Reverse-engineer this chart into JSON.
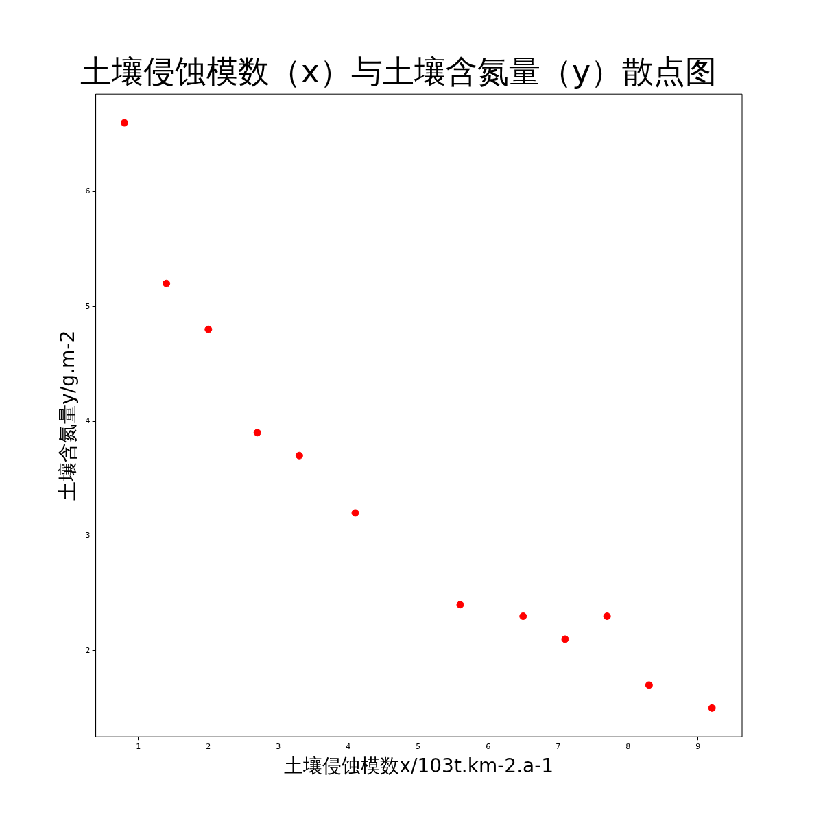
{
  "chart_data": {
    "type": "scatter",
    "title": "土壤侵蚀模数（x）与土壤含氮量（y）散点图",
    "xlabel": "土壤侵蚀模数x/103t.km-2.a-1",
    "ylabel": "土壤含氮量y/g.m-2",
    "x": [
      0.8,
      1.4,
      2.0,
      2.7,
      3.3,
      4.1,
      5.6,
      6.5,
      7.1,
      7.7,
      8.3,
      9.2
    ],
    "values": [
      6.6,
      5.2,
      4.8,
      3.9,
      3.7,
      3.2,
      2.4,
      2.3,
      2.1,
      2.3,
      1.7,
      1.5
    ],
    "color": "#ff0000",
    "marker": "circle",
    "xlim": [
      0.39,
      9.63
    ],
    "xticks": [
      1,
      2,
      3,
      4,
      5,
      6,
      7,
      8,
      9
    ],
    "ylim": [
      1.25,
      6.85
    ],
    "yticks": [
      2,
      3,
      4,
      5,
      6
    ],
    "grid": false,
    "legend": false
  }
}
